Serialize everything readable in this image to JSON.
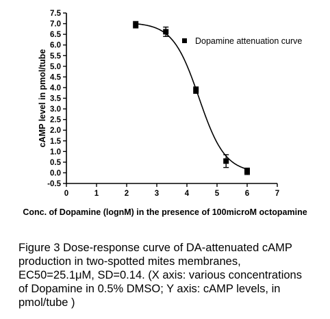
{
  "chart_data": {
    "type": "scatter",
    "title": "",
    "xlabel": "Conc. of Dopamine (lognM) in the presence of 100microM octopamine",
    "ylabel": "cAMP level in pmol/tube",
    "xlim": [
      0,
      7
    ],
    "ylim": [
      -0.5,
      7.5
    ],
    "x_ticks": [
      "0",
      "1",
      "2",
      "3",
      "4",
      "5",
      "6",
      "7"
    ],
    "y_ticks": [
      "-0.5",
      "0.0",
      "0.5",
      "1.0",
      "1.5",
      "2.0",
      "2.5",
      "3.0",
      "3.5",
      "4.0",
      "4.5",
      "5.0",
      "5.5",
      "6.0",
      "6.5",
      "7.0",
      "7.5"
    ],
    "series": [
      {
        "name": "Dopamine attenuation curve",
        "marker": "square",
        "color": "#000000",
        "x": [
          2.3,
          3.3,
          4.3,
          5.3,
          6.0
        ],
        "y": [
          6.95,
          6.62,
          3.88,
          0.55,
          0.07
        ],
        "error": [
          0.15,
          0.22,
          0.15,
          0.3,
          0.15
        ]
      }
    ],
    "fit_curve": {
      "model": "sigmoidal dose-response",
      "top": 7.05,
      "bottom": 0.0,
      "log_ec50": 4.4,
      "hill_slope": -1.0,
      "x_range": [
        2.3,
        6.0
      ]
    },
    "legend_position": "top-right",
    "grid": false
  },
  "caption": {
    "lines": [
      "Figure 3 Dose-response curve of DA-attenuated cAMP",
      "production in two-spotted mites membranes,",
      "EC50=25.1μM, SD=0.14. (X axis: various concentrations",
      "of Dopamine in 0.5% DMSO; Y axis: cAMP levels, in",
      "pmol/tube )"
    ]
  }
}
